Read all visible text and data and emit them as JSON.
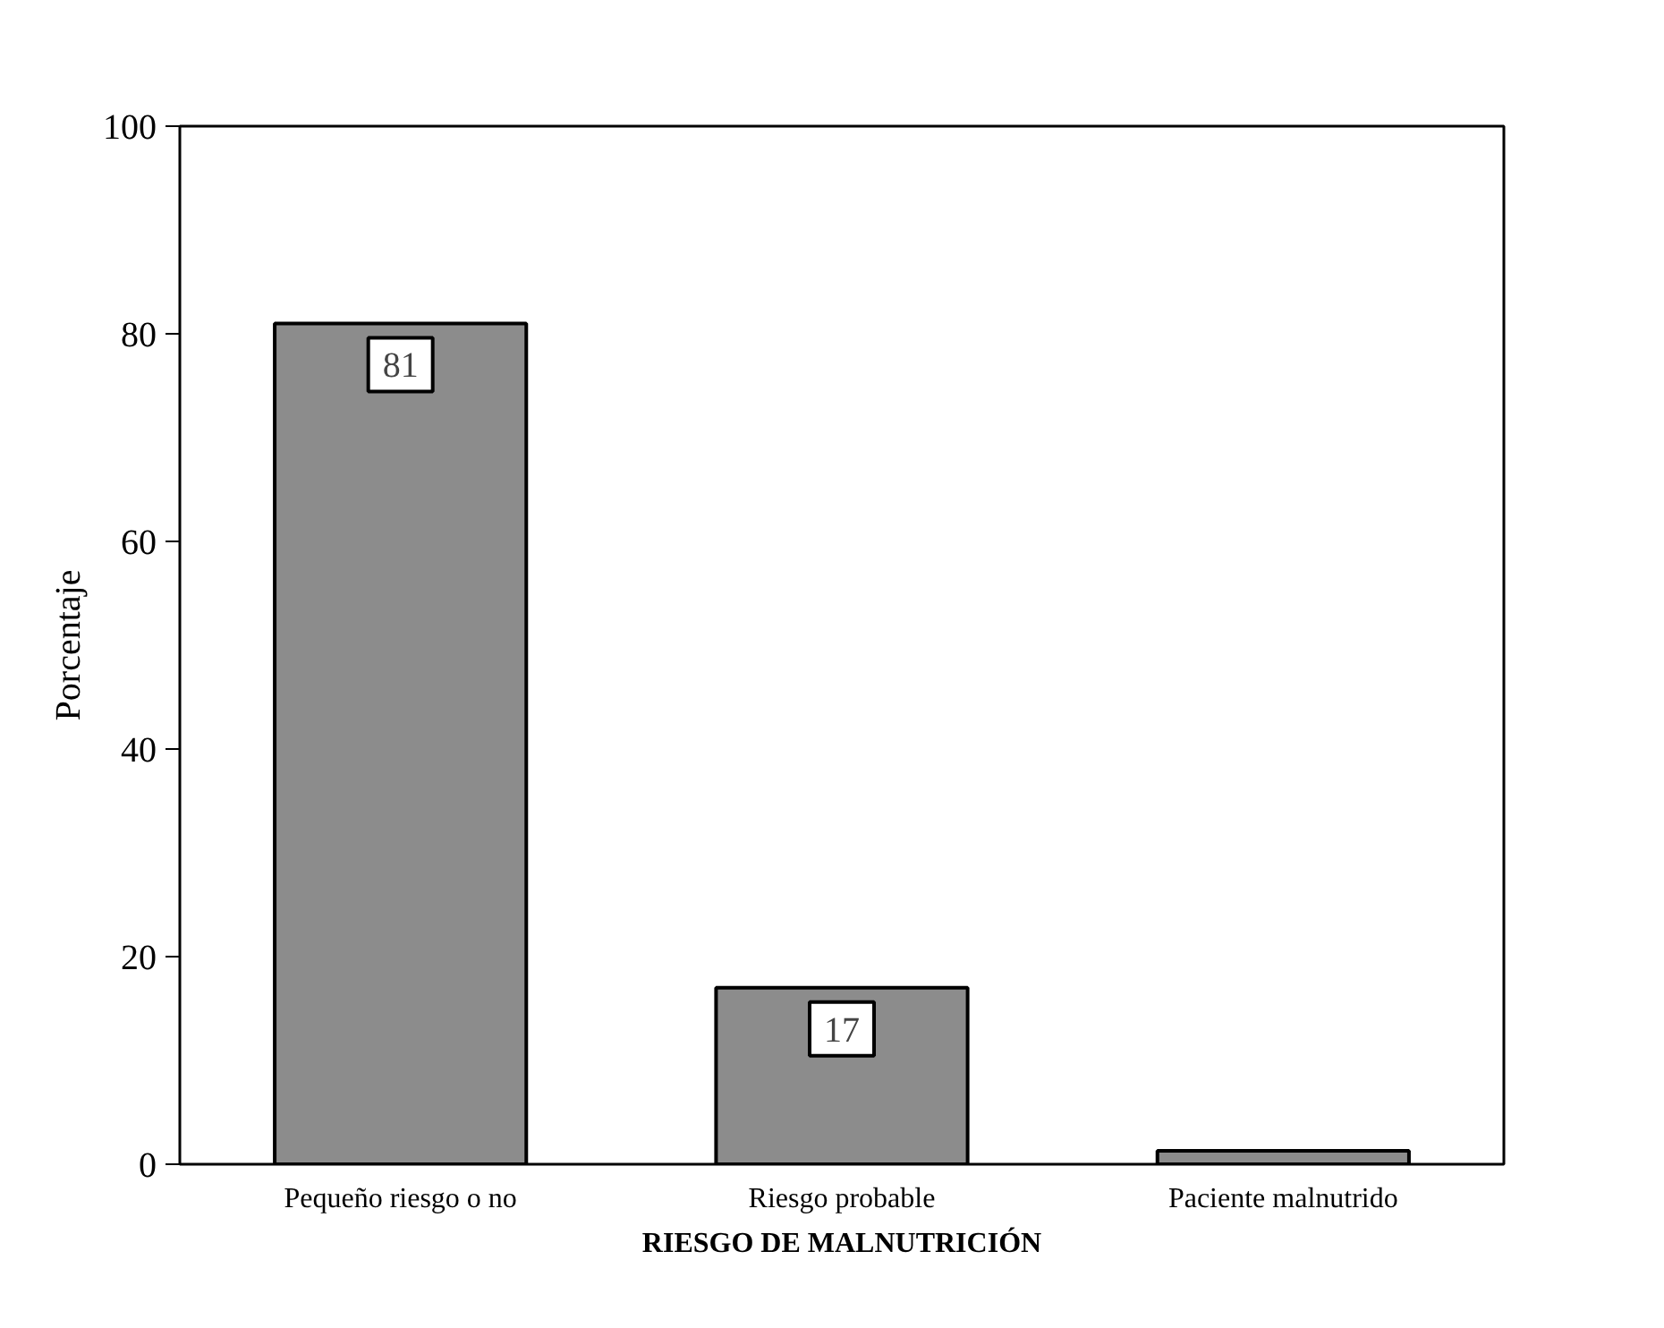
{
  "chart_data": {
    "type": "bar",
    "xlabel": "RIESGO DE MALNUTRICIÓN",
    "ylabel": "Porcentaje",
    "categories": [
      "Pequeño riesgo o no",
      "Riesgo probable",
      "Paciente malnutrido"
    ],
    "values": [
      81,
      17,
      1.3
    ],
    "value_labels": [
      "81",
      "17",
      null
    ],
    "color": "#8c8c8c",
    "ylim": [
      0,
      100
    ],
    "yticks": [
      0,
      20,
      40,
      60,
      80,
      100
    ],
    "grid": false
  }
}
